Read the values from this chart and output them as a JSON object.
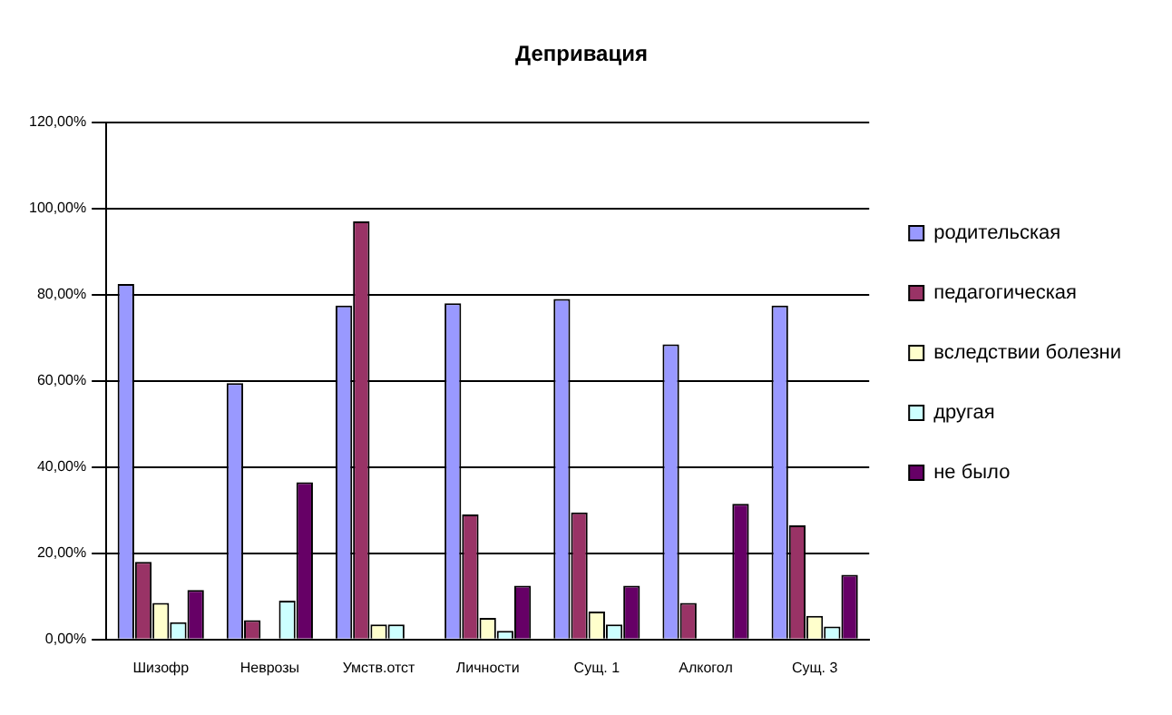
{
  "chart_data": {
    "type": "bar",
    "title": "Депривация",
    "categories": [
      "Шизофр",
      "Неврозы",
      "Умств.отст",
      "Личности",
      "Сущ. 1",
      "Алкогол",
      "Сущ. 3"
    ],
    "series": [
      {
        "name": "родительская",
        "color": "#9999ff",
        "values": [
          82.5,
          59.5,
          77.5,
          78,
          79,
          68.5,
          77.5
        ]
      },
      {
        "name": "педагогическая",
        "color": "#993366",
        "values": [
          18,
          4.5,
          97,
          29,
          29.5,
          8.5,
          26.5
        ]
      },
      {
        "name": "вследствии болезни",
        "color": "#ffffcc",
        "values": [
          8.5,
          0,
          3.5,
          5,
          6.5,
          0,
          5.5
        ]
      },
      {
        "name": "другая",
        "color": "#ccffff",
        "values": [
          4,
          9,
          3.5,
          2,
          3.5,
          0,
          3
        ]
      },
      {
        "name": "не было",
        "color": "#660066",
        "values": [
          11.5,
          36.5,
          0,
          12.5,
          12.5,
          31.5,
          15
        ]
      }
    ],
    "ylim": [
      0,
      120
    ],
    "yticks": [
      {
        "value": 0,
        "label": "0,00%"
      },
      {
        "value": 20,
        "label": "20,00%"
      },
      {
        "value": 40,
        "label": "40,00%"
      },
      {
        "value": 60,
        "label": "60,00%"
      },
      {
        "value": 80,
        "label": "80,00%"
      },
      {
        "value": 100,
        "label": "100,00%"
      },
      {
        "value": 120,
        "label": "120,00%"
      }
    ],
    "grid": "y",
    "legend": "right"
  }
}
